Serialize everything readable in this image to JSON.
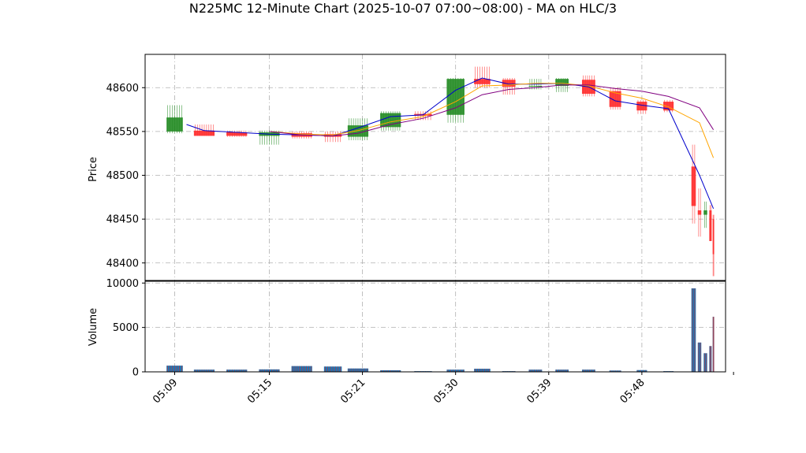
{
  "chart_data": {
    "type": "candlestick",
    "title": "N225MC 12-Minute Chart (2025-10-07 07:00~08:00) - MA on HLC/3",
    "price_panel": {
      "ylabel": "Price",
      "ylim": [
        48380,
        48638
      ],
      "yticks": [
        48400,
        48450,
        48500,
        48550,
        48600
      ],
      "grid": true
    },
    "volume_panel": {
      "ylabel": "Volume",
      "ylim": [
        0,
        10200
      ],
      "yticks": [
        0,
        5000,
        10000
      ],
      "grid": true
    },
    "xlim": [
      0,
      18.8
    ],
    "x_ticks": [
      {
        "x": 1,
        "label": "05:09"
      },
      {
        "x": 4.2,
        "label": "05:15"
      },
      {
        "x": 7.35,
        "label": "05:21"
      },
      {
        "x": 10.5,
        "label": "05:30"
      },
      {
        "x": 13.65,
        "label": "05:39"
      },
      {
        "x": 16.8,
        "label": "05:48"
      }
    ],
    "end_tick_x": 19.9,
    "candles": [
      {
        "x": 1.0,
        "w": 0.55,
        "open": 48550,
        "high": 48580,
        "low": 48548,
        "close": 48566
      },
      {
        "x": 2.0,
        "w": 0.7,
        "open": 48551,
        "high": 48558,
        "low": 48545,
        "close": 48545
      },
      {
        "x": 3.1,
        "w": 0.7,
        "open": 48549,
        "high": 48551,
        "low": 48544,
        "close": 48545
      },
      {
        "x": 4.2,
        "w": 0.7,
        "open": 48545,
        "high": 48551,
        "low": 48535,
        "close": 48549
      },
      {
        "x": 5.3,
        "w": 0.7,
        "open": 48548,
        "high": 48550,
        "low": 48542,
        "close": 48544
      },
      {
        "x": 6.35,
        "w": 0.6,
        "open": 48547,
        "high": 48550,
        "low": 48538,
        "close": 48544
      },
      {
        "x": 7.2,
        "w": 0.7,
        "open": 48544,
        "high": 48565,
        "low": 48540,
        "close": 48557
      },
      {
        "x": 8.3,
        "w": 0.7,
        "open": 48555,
        "high": 48573,
        "low": 48551,
        "close": 48571
      },
      {
        "x": 9.4,
        "w": 0.6,
        "open": 48570,
        "high": 48573,
        "low": 48563,
        "close": 48568
      },
      {
        "x": 10.5,
        "w": 0.6,
        "open": 48569,
        "high": 48611,
        "low": 48560,
        "close": 48610
      },
      {
        "x": 11.4,
        "w": 0.55,
        "open": 48610,
        "high": 48624,
        "low": 48600,
        "close": 48604
      },
      {
        "x": 12.3,
        "w": 0.45,
        "open": 48609,
        "high": 48611,
        "low": 48592,
        "close": 48601
      },
      {
        "x": 13.2,
        "w": 0.45,
        "open": 48602,
        "high": 48610,
        "low": 48598,
        "close": 48602
      },
      {
        "x": 14.1,
        "w": 0.45,
        "open": 48602,
        "high": 48611,
        "low": 48595,
        "close": 48610
      },
      {
        "x": 15.0,
        "w": 0.45,
        "open": 48609,
        "high": 48614,
        "low": 48590,
        "close": 48593
      },
      {
        "x": 15.9,
        "w": 0.4,
        "open": 48596,
        "high": 48600,
        "low": 48575,
        "close": 48578
      },
      {
        "x": 16.8,
        "w": 0.35,
        "open": 48584,
        "high": 48586,
        "low": 48570,
        "close": 48574
      },
      {
        "x": 17.7,
        "w": 0.35,
        "open": 48584,
        "high": 48586,
        "low": 48572,
        "close": 48574
      },
      {
        "x": 18.55,
        "w": 0.15,
        "open": 48510,
        "high": 48535,
        "low": 48445,
        "close": 48465
      },
      {
        "x": 18.75,
        "w": 0.12,
        "open": 48460,
        "high": 48485,
        "low": 48430,
        "close": 48455
      },
      {
        "x": 18.95,
        "w": 0.12,
        "open": 48455,
        "high": 48470,
        "low": 48440,
        "close": 48460
      },
      {
        "x": 19.12,
        "w": 0.08,
        "open": 48460,
        "high": 48466,
        "low": 48425,
        "close": 48425
      },
      {
        "x": 19.22,
        "w": 0.05,
        "open": 48450,
        "high": 48455,
        "low": 48385,
        "close": 48410
      }
    ],
    "volumes": [
      {
        "x": 1.0,
        "w": 0.55,
        "value": 700
      },
      {
        "x": 2.0,
        "w": 0.7,
        "value": 250
      },
      {
        "x": 3.1,
        "w": 0.7,
        "value": 250
      },
      {
        "x": 4.2,
        "w": 0.7,
        "value": 280
      },
      {
        "x": 5.3,
        "w": 0.7,
        "value": 650
      },
      {
        "x": 6.35,
        "w": 0.6,
        "value": 600
      },
      {
        "x": 7.2,
        "w": 0.7,
        "value": 380
      },
      {
        "x": 8.3,
        "w": 0.7,
        "value": 180
      },
      {
        "x": 9.4,
        "w": 0.6,
        "value": 80
      },
      {
        "x": 10.5,
        "w": 0.6,
        "value": 250
      },
      {
        "x": 11.4,
        "w": 0.55,
        "value": 350
      },
      {
        "x": 12.3,
        "w": 0.45,
        "value": 80
      },
      {
        "x": 13.2,
        "w": 0.45,
        "value": 250
      },
      {
        "x": 14.1,
        "w": 0.45,
        "value": 250
      },
      {
        "x": 15.0,
        "w": 0.45,
        "value": 250
      },
      {
        "x": 15.9,
        "w": 0.4,
        "value": 150
      },
      {
        "x": 16.8,
        "w": 0.35,
        "value": 200
      },
      {
        "x": 17.7,
        "w": 0.35,
        "value": 80
      },
      {
        "x": 18.55,
        "w": 0.15,
        "value": 9400
      },
      {
        "x": 18.75,
        "w": 0.12,
        "value": 3300
      },
      {
        "x": 18.95,
        "w": 0.12,
        "value": 2100
      },
      {
        "x": 19.12,
        "w": 0.08,
        "value": 2900
      },
      {
        "x": 19.22,
        "w": 0.05,
        "value": 6200
      }
    ],
    "moving_averages": [
      {
        "color": "#0000cc",
        "points": [
          [
            1.4,
            48558
          ],
          [
            2.0,
            48551
          ],
          [
            3.1,
            48549
          ],
          [
            4.2,
            48547
          ],
          [
            5.3,
            48546
          ],
          [
            6.35,
            48545
          ],
          [
            7.2,
            48554
          ],
          [
            8.3,
            48567
          ],
          [
            9.4,
            48569
          ],
          [
            10.5,
            48597
          ],
          [
            11.4,
            48611
          ],
          [
            12.3,
            48604
          ],
          [
            13.2,
            48604
          ],
          [
            14.1,
            48605
          ],
          [
            15.0,
            48601
          ],
          [
            15.9,
            48585
          ],
          [
            16.8,
            48580
          ],
          [
            17.7,
            48576
          ],
          [
            18.75,
            48500
          ],
          [
            19.22,
            48462
          ]
        ]
      },
      {
        "color": "#ffa500",
        "points": [
          [
            4.2,
            48550
          ],
          [
            5.3,
            48547
          ],
          [
            6.35,
            48546
          ],
          [
            7.2,
            48551
          ],
          [
            8.3,
            48561
          ],
          [
            9.4,
            48567
          ],
          [
            10.5,
            48584
          ],
          [
            11.4,
            48602
          ],
          [
            12.3,
            48603
          ],
          [
            13.2,
            48605
          ],
          [
            14.1,
            48605
          ],
          [
            15.0,
            48602
          ],
          [
            15.9,
            48594
          ],
          [
            16.8,
            48588
          ],
          [
            17.7,
            48578
          ],
          [
            18.75,
            48560
          ],
          [
            19.22,
            48520
          ]
        ]
      },
      {
        "color": "#800080",
        "points": [
          [
            4.2,
            48550
          ],
          [
            5.3,
            48546
          ],
          [
            6.35,
            48545
          ],
          [
            7.2,
            48548
          ],
          [
            8.3,
            48558
          ],
          [
            9.4,
            48565
          ],
          [
            10.5,
            48577
          ],
          [
            11.4,
            48592
          ],
          [
            12.3,
            48598
          ],
          [
            13.2,
            48600
          ],
          [
            14.1,
            48603
          ],
          [
            15.0,
            48603
          ],
          [
            15.9,
            48599
          ],
          [
            16.8,
            48596
          ],
          [
            17.7,
            48590
          ],
          [
            18.75,
            48577
          ],
          [
            19.22,
            48552
          ]
        ]
      }
    ],
    "up_color": "#228b22",
    "down_color": "#ff2a2a",
    "volume_color": "#1f77b4",
    "volume_edge_color": "#d62728"
  }
}
